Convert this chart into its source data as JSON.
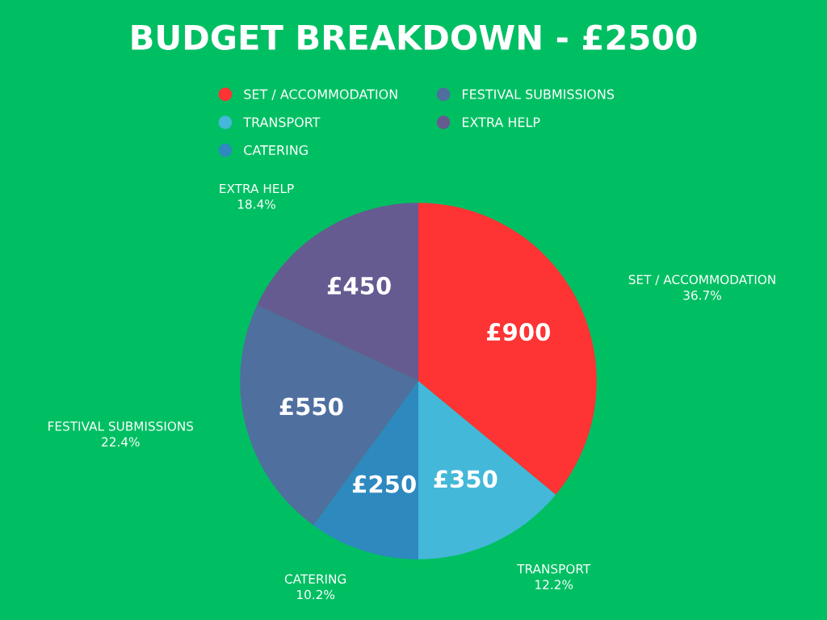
{
  "chart_data": {
    "type": "pie",
    "title": "BUDGET BREAKDOWN - £2500",
    "categories": [
      "SET / ACCOMMODATION",
      "TRANSPORT",
      "CATERING",
      "FESTIVAL SUBMISSIONS",
      "EXTRA HELP"
    ],
    "values": [
      900,
      350,
      250,
      550,
      450
    ],
    "colors": [
      "#fe3334",
      "#44b8d8",
      "#2e89bf",
      "#4f6f9f",
      "#655b91"
    ],
    "value_labels": [
      "£900",
      "£350",
      "£250",
      "£550",
      "£450"
    ],
    "annotations": [
      "36.7%",
      "12.2%",
      "10.2%",
      "22.4%",
      "18.4%"
    ],
    "legend": "top"
  }
}
